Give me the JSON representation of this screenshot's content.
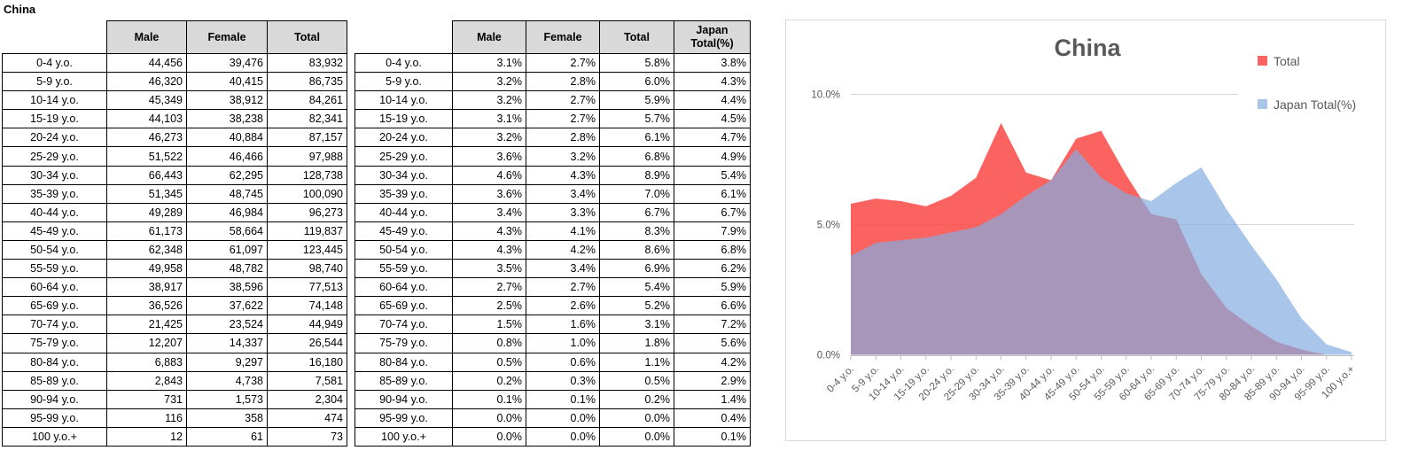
{
  "sheet_title": "China",
  "tables": [
    {
      "name": "population-counts",
      "headers": [
        "",
        "Male",
        "Female",
        "Total"
      ],
      "rows": [
        [
          "0-4 y.o.",
          "44,456",
          "39,476",
          "83,932"
        ],
        [
          "5-9 y.o.",
          "46,320",
          "40,415",
          "86,735"
        ],
        [
          "10-14 y.o.",
          "45,349",
          "38,912",
          "84,261"
        ],
        [
          "15-19 y.o.",
          "44,103",
          "38,238",
          "82,341"
        ],
        [
          "20-24 y.o.",
          "46,273",
          "40,884",
          "87,157"
        ],
        [
          "25-29 y.o.",
          "51,522",
          "46,466",
          "97,988"
        ],
        [
          "30-34 y.o.",
          "66,443",
          "62,295",
          "128,738"
        ],
        [
          "35-39 y.o.",
          "51,345",
          "48,745",
          "100,090"
        ],
        [
          "40-44 y.o.",
          "49,289",
          "46,984",
          "96,273"
        ],
        [
          "45-49 y.o.",
          "61,173",
          "58,664",
          "119,837"
        ],
        [
          "50-54 y.o.",
          "62,348",
          "61,097",
          "123,445"
        ],
        [
          "55-59 y.o.",
          "49,958",
          "48,782",
          "98,740"
        ],
        [
          "60-64 y.o.",
          "38,917",
          "38,596",
          "77,513"
        ],
        [
          "65-69 y.o.",
          "36,526",
          "37,622",
          "74,148"
        ],
        [
          "70-74 y.o.",
          "21,425",
          "23,524",
          "44,949"
        ],
        [
          "75-79 y.o.",
          "12,207",
          "14,337",
          "26,544"
        ],
        [
          "80-84 y.o.",
          "6,883",
          "9,297",
          "16,180"
        ],
        [
          "85-89 y.o.",
          "2,843",
          "4,738",
          "7,581"
        ],
        [
          "90-94 y.o.",
          "731",
          "1,573",
          "2,304"
        ],
        [
          "95-99 y.o.",
          "116",
          "358",
          "474"
        ],
        [
          "100 y.o.+",
          "12",
          "61",
          "73"
        ]
      ]
    },
    {
      "name": "population-percent",
      "headers": [
        "",
        "Male",
        "Female",
        "Total",
        [
          "Japan",
          "Total(%)"
        ]
      ],
      "rows": [
        [
          "0-4 y.o.",
          "3.1%",
          "2.7%",
          "5.8%",
          "3.8%"
        ],
        [
          "5-9 y.o.",
          "3.2%",
          "2.8%",
          "6.0%",
          "4.3%"
        ],
        [
          "10-14 y.o.",
          "3.2%",
          "2.7%",
          "5.9%",
          "4.4%"
        ],
        [
          "15-19 y.o.",
          "3.1%",
          "2.7%",
          "5.7%",
          "4.5%"
        ],
        [
          "20-24 y.o.",
          "3.2%",
          "2.8%",
          "6.1%",
          "4.7%"
        ],
        [
          "25-29 y.o.",
          "3.6%",
          "3.2%",
          "6.8%",
          "4.9%"
        ],
        [
          "30-34 y.o.",
          "4.6%",
          "4.3%",
          "8.9%",
          "5.4%"
        ],
        [
          "35-39 y.o.",
          "3.6%",
          "3.4%",
          "7.0%",
          "6.1%"
        ],
        [
          "40-44 y.o.",
          "3.4%",
          "3.3%",
          "6.7%",
          "6.7%"
        ],
        [
          "45-49 y.o.",
          "4.3%",
          "4.1%",
          "8.3%",
          "7.9%"
        ],
        [
          "50-54 y.o.",
          "4.3%",
          "4.2%",
          "8.6%",
          "6.8%"
        ],
        [
          "55-59 y.o.",
          "3.5%",
          "3.4%",
          "6.9%",
          "6.2%"
        ],
        [
          "60-64 y.o.",
          "2.7%",
          "2.7%",
          "5.4%",
          "5.9%"
        ],
        [
          "65-69 y.o.",
          "2.5%",
          "2.6%",
          "5.2%",
          "6.6%"
        ],
        [
          "70-74 y.o.",
          "1.5%",
          "1.6%",
          "3.1%",
          "7.2%"
        ],
        [
          "75-79 y.o.",
          "0.8%",
          "1.0%",
          "1.8%",
          "5.6%"
        ],
        [
          "80-84 y.o.",
          "0.5%",
          "0.6%",
          "1.1%",
          "4.2%"
        ],
        [
          "85-89 y.o.",
          "0.2%",
          "0.3%",
          "0.5%",
          "2.9%"
        ],
        [
          "90-94 y.o.",
          "0.1%",
          "0.1%",
          "0.2%",
          "1.4%"
        ],
        [
          "95-99 y.o.",
          "0.0%",
          "0.0%",
          "0.0%",
          "0.4%"
        ],
        [
          "100 y.o.+",
          "0.0%",
          "0.0%",
          "0.0%",
          "0.1%"
        ]
      ]
    }
  ],
  "chart_data": {
    "type": "area",
    "title": "China",
    "categories": [
      "0-4 y.o.",
      "5-9 y.o.",
      "10-14 y.o.",
      "15-19 y.o.",
      "20-24 y.o.",
      "25-29 y.o.",
      "30-34 y.o.",
      "35-39 y.o.",
      "40-44 y.o.",
      "45-49 y.o.",
      "50-54 y.o.",
      "55-59 y.o.",
      "60-64 y.o.",
      "65-69 y.o.",
      "70-74 y.o.",
      "75-79 y.o.",
      "80-84 y.o.",
      "85-89 y.o.",
      "90-94 y.o.",
      "95-99 y.o.",
      "100 y.o.+"
    ],
    "series": [
      {
        "name": "Total",
        "color": "#FB6361",
        "fill_rgba": "rgba(250,60,58,0.8)",
        "values": [
          5.8,
          6.0,
          5.9,
          5.7,
          6.1,
          6.8,
          8.9,
          7.0,
          6.7,
          8.3,
          8.6,
          6.9,
          5.4,
          5.2,
          3.1,
          1.8,
          1.1,
          0.5,
          0.2,
          0.0,
          0.0
        ]
      },
      {
        "name": "Japan Total(%)",
        "color": "#A9C6E8",
        "fill_rgba": "rgba(132,173,223,0.7)",
        "values": [
          3.8,
          4.3,
          4.4,
          4.5,
          4.7,
          4.9,
          5.4,
          6.1,
          6.7,
          7.9,
          6.8,
          6.2,
          5.9,
          6.6,
          7.2,
          5.6,
          4.2,
          2.9,
          1.4,
          0.4,
          0.1
        ]
      }
    ],
    "xlabel": "",
    "ylabel": "",
    "ylim": [
      0,
      10
    ],
    "y_ticks": [
      "10.0%",
      "5.0%",
      "0.0%"
    ],
    "y_tick_values": [
      10,
      5,
      0
    ],
    "grid": true,
    "legend_position": "right",
    "text_color": "#595959",
    "gridline_color": "#D9D9D9",
    "axis_color": "#BFBFBF"
  }
}
